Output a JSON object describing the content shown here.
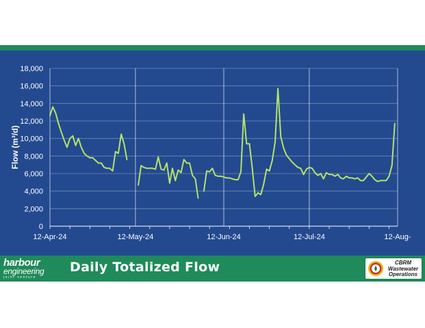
{
  "colors": {
    "panel": "#234a8f",
    "band": "#1f8a5a",
    "line": "#b5e36a",
    "grid": "#ffffff",
    "text": "#ffffff"
  },
  "footer": {
    "title": "Daily Totalized Flow",
    "brand_line1": "harbour",
    "brand_line2": "engineering",
    "brand_line3": "joint venture",
    "badge_line1": "CBRM",
    "badge_line2": "Wastewater",
    "badge_line3": "Operations"
  },
  "chart_data": {
    "type": "line",
    "ylabel": "Flow (m³/d)",
    "ylim": [
      0,
      18000
    ],
    "yticks": [
      0,
      2000,
      4000,
      6000,
      8000,
      10000,
      12000,
      14000,
      16000,
      18000
    ],
    "ytick_labels": [
      "0",
      "2,000",
      "4,000",
      "6,000",
      "8,000",
      "10,000",
      "12,000",
      "14,000",
      "16,000",
      "18,000"
    ],
    "xlim": [
      "2024-04-12",
      "2024-08-12"
    ],
    "xticks": [
      "2024-04-12",
      "2024-05-12",
      "2024-06-12",
      "2024-07-12",
      "2024-08-12"
    ],
    "xtick_labels": [
      "12-Apr-24",
      "12-May-24",
      "12-Jun-24",
      "12-Jul-24",
      "12-Aug-"
    ],
    "grid": "vertical-at-ticks-and-horizontal",
    "series": [
      {
        "segments": [
          {
            "x": [
              "2024-04-12",
              "2024-04-13",
              "2024-04-14",
              "2024-04-15",
              "2024-04-16",
              "2024-04-17",
              "2024-04-18",
              "2024-04-19",
              "2024-04-20",
              "2024-04-21",
              "2024-04-22",
              "2024-04-23",
              "2024-04-24",
              "2024-04-25",
              "2024-04-26",
              "2024-04-27",
              "2024-04-28",
              "2024-04-29",
              "2024-04-30",
              "2024-05-01",
              "2024-05-02",
              "2024-05-03",
              "2024-05-04",
              "2024-05-05",
              "2024-05-06",
              "2024-05-07",
              "2024-05-08",
              "2024-05-09",
              "2024-05-10",
              "2024-05-11"
            ],
            "y": [
              12600,
              13600,
              12900,
              11700,
              10700,
              9800,
              9000,
              10000,
              10300,
              9200,
              10000,
              9000,
              8300,
              8000,
              7800,
              7800,
              7500,
              7200,
              7200,
              6700,
              6600,
              6600,
              6300,
              8500,
              8300,
              10500,
              9400,
              7600,
              null,
              null
            ]
          },
          {
            "x": [
              "2024-05-13",
              "2024-05-14",
              "2024-05-15",
              "2024-05-16",
              "2024-05-17",
              "2024-05-18",
              "2024-05-19",
              "2024-05-20",
              "2024-05-21",
              "2024-05-22",
              "2024-05-23",
              "2024-05-24",
              "2024-05-25",
              "2024-05-26",
              "2024-05-27",
              "2024-05-28",
              "2024-05-29",
              "2024-05-30",
              "2024-05-31",
              "2024-06-01",
              "2024-06-02",
              "2024-06-03"
            ],
            "y": [
              4700,
              6900,
              6700,
              6600,
              6600,
              6600,
              6500,
              7900,
              6500,
              6400,
              7200,
              4900,
              6600,
              5200,
              6400,
              6100,
              7600,
              7200,
              7200,
              5800,
              5400,
              3200
            ]
          },
          {
            "x": [
              "2024-06-05",
              "2024-06-06",
              "2024-06-07",
              "2024-06-08",
              "2024-06-09",
              "2024-06-10",
              "2024-06-11",
              "2024-06-12",
              "2024-06-13",
              "2024-06-14",
              "2024-06-15",
              "2024-06-16",
              "2024-06-17",
              "2024-06-18",
              "2024-06-19",
              "2024-06-20",
              "2024-06-21",
              "2024-06-22",
              "2024-06-23",
              "2024-06-24",
              "2024-06-25",
              "2024-06-26",
              "2024-06-27",
              "2024-06-28",
              "2024-06-29",
              "2024-06-30",
              "2024-07-01",
              "2024-07-02",
              "2024-07-03",
              "2024-07-04",
              "2024-07-05",
              "2024-07-06",
              "2024-07-07",
              "2024-07-08",
              "2024-07-09",
              "2024-07-10",
              "2024-07-11",
              "2024-07-12",
              "2024-07-13",
              "2024-07-14",
              "2024-07-15",
              "2024-07-16",
              "2024-07-17",
              "2024-07-18",
              "2024-07-19",
              "2024-07-20",
              "2024-07-21",
              "2024-07-22",
              "2024-07-23",
              "2024-07-24",
              "2024-07-25",
              "2024-07-26",
              "2024-07-27",
              "2024-07-28",
              "2024-07-29",
              "2024-07-30",
              "2024-07-31",
              "2024-08-01",
              "2024-08-02",
              "2024-08-03",
              "2024-08-04",
              "2024-08-05",
              "2024-08-06",
              "2024-08-07",
              "2024-08-08",
              "2024-08-09",
              "2024-08-10",
              "2024-08-11",
              "2024-08-12"
            ],
            "y": [
              4000,
              6300,
              6200,
              6600,
              5800,
              5700,
              5700,
              5600,
              5500,
              5500,
              5400,
              5300,
              5300,
              6200,
              12800,
              9400,
              9400,
              6600,
              3400,
              3800,
              3600,
              4800,
              6500,
              6300,
              7500,
              9600,
              15700,
              10200,
              8900,
              8100,
              7700,
              7300,
              7000,
              6700,
              6600,
              5900,
              6500,
              6700,
              6600,
              6100,
              5800,
              6000,
              5400,
              6100,
              5900,
              5900,
              5700,
              5900,
              5500,
              5400,
              5700,
              5500,
              5500,
              5400,
              5500,
              5200,
              5200,
              5600,
              6000,
              5700,
              5300,
              5100,
              5200,
              5200,
              5200,
              5700,
              6900,
              11700,
              null
            ]
          }
        ]
      }
    ]
  }
}
